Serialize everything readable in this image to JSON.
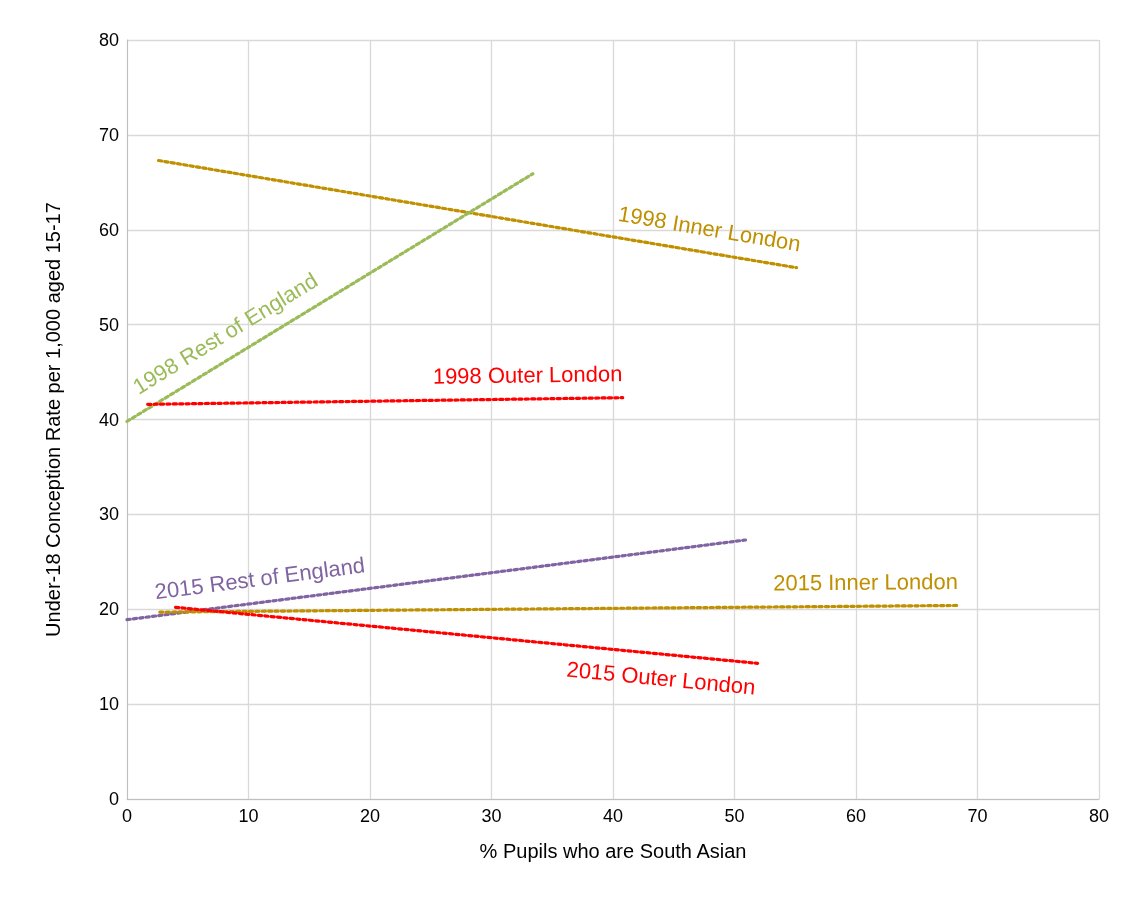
{
  "chart_data": {
    "type": "line",
    "xlabel": "% Pupils who are South Asian",
    "ylabel": "Under-18 Conception Rate per 1,000 aged 15-17",
    "xlim": [
      0,
      80
    ],
    "xticks": [
      0,
      10,
      20,
      30,
      40,
      50,
      60,
      70,
      80
    ],
    "ylim": [
      0,
      80
    ],
    "yticks": [
      0,
      10,
      20,
      30,
      40,
      50,
      60,
      70,
      80
    ],
    "grid": true,
    "legend": false,
    "marker": "none",
    "line_style": "dotted",
    "series": [
      {
        "name": "1998 Inner London",
        "color": "#bf9000",
        "x": [
          2.6,
          55.1
        ],
        "values": [
          67.3,
          56.0
        ]
      },
      {
        "name": "1998 Rest of England",
        "color": "#9bbb59",
        "x": [
          0,
          33.4
        ],
        "values": [
          39.8,
          65.9
        ]
      },
      {
        "name": "1998 Outer London",
        "color": "#ff0000",
        "x": [
          1.7,
          40.8
        ],
        "values": [
          41.6,
          42.3
        ]
      },
      {
        "name": "2015 Rest of England",
        "color": "#8064a2",
        "x": [
          0,
          50.9
        ],
        "values": [
          18.9,
          27.3
        ]
      },
      {
        "name": "2015 Inner London",
        "color": "#bf9000",
        "x": [
          2.7,
          68.4
        ],
        "values": [
          19.7,
          20.4
        ]
      },
      {
        "name": "2015 Outer London",
        "color": "#ff0000",
        "x": [
          4.0,
          51.9
        ],
        "values": [
          20.2,
          14.3
        ]
      }
    ]
  }
}
